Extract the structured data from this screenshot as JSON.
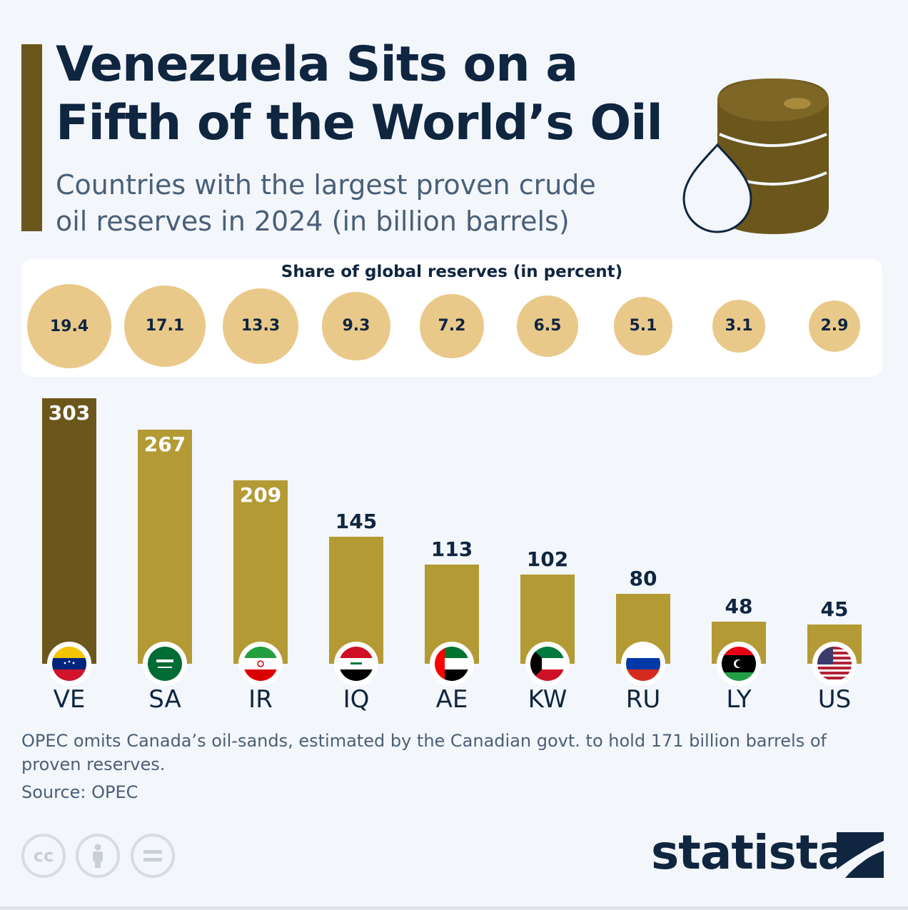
{
  "header": {
    "title": "Venezuela Sits on a Fifth of the World’s Oil",
    "subtitle": "Countries with the largest proven crude oil reserves in 2024 (in billion barrels)"
  },
  "share_panel": {
    "title": "Share of global reserves (in percent)"
  },
  "footer": {
    "note": "OPEC omits Canada’s oil-sands, estimated by the Canadian govt. to hold 171 billion barrels of proven reserves.",
    "source": "Source: OPEC",
    "brand": "statista",
    "license_icons": [
      "cc-icon",
      "person-icon",
      "equals-icon"
    ]
  },
  "colors": {
    "accent": "#6b561c",
    "highlight_bar": "#6b561c",
    "bar": "#b39a35",
    "bubble": "#e9c98a",
    "title": "#0f2540"
  },
  "chart_data": {
    "type": "bar",
    "title": "Venezuela Sits on a Fifth of the World’s Oil",
    "subtitle": "Countries with the largest proven crude oil reserves in 2024 (in billion barrels)",
    "categories": [
      "VE",
      "SA",
      "IR",
      "IQ",
      "AE",
      "KW",
      "RU",
      "LY",
      "US"
    ],
    "values": [
      303,
      267,
      209,
      145,
      113,
      102,
      80,
      48,
      45
    ],
    "share_percent": [
      19.4,
      17.1,
      13.3,
      9.3,
      7.2,
      6.5,
      5.1,
      3.1,
      2.9
    ],
    "highlighted_category": "VE",
    "ylim": [
      0,
      303
    ],
    "grid": false
  }
}
